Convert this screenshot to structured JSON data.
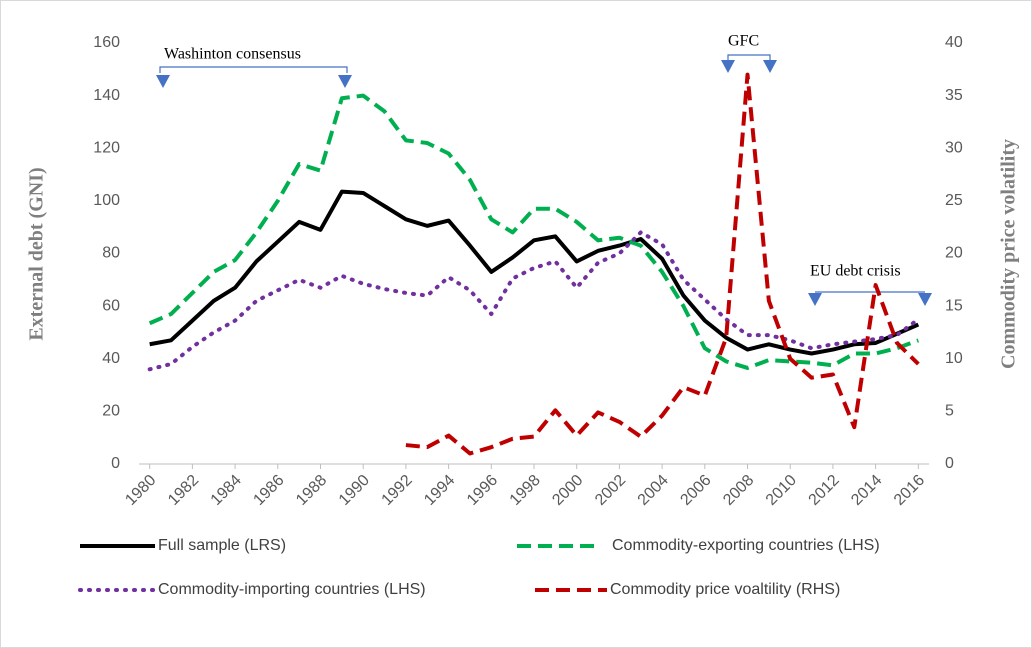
{
  "chart_data": {
    "type": "line",
    "x": [
      1980,
      1981,
      1982,
      1983,
      1984,
      1985,
      1986,
      1987,
      1988,
      1989,
      1990,
      1991,
      1992,
      1993,
      1994,
      1995,
      1996,
      1997,
      1998,
      1999,
      2000,
      2001,
      2002,
      2003,
      2004,
      2005,
      2006,
      2007,
      2008,
      2009,
      2010,
      2011,
      2012,
      2013,
      2014,
      2015,
      2016
    ],
    "xlim": [
      1979.5,
      2016.5
    ],
    "xticks": [
      1980,
      1982,
      1984,
      1986,
      1988,
      1990,
      1992,
      1994,
      1996,
      1998,
      2000,
      2002,
      2004,
      2006,
      2008,
      2010,
      2012,
      2014,
      2016
    ],
    "ylim": [
      0,
      160
    ],
    "yticks": [
      0,
      20,
      40,
      60,
      80,
      100,
      120,
      140,
      160
    ],
    "y2lim": [
      0,
      40
    ],
    "y2ticks": [
      0,
      5,
      10,
      15,
      20,
      25,
      30,
      35,
      40
    ],
    "ylabel": "External debt (GNI)",
    "y2label": "Commodity price volatility",
    "annotations": [
      "Washinton consensus",
      "GFC",
      "EU debt crisis"
    ],
    "series": [
      {
        "name": "Full sample (LRS)",
        "color": "#000000",
        "style": "solid",
        "values": [
          45.5,
          47,
          54.5,
          62,
          67,
          77,
          84.5,
          92,
          89,
          103.5,
          103,
          98,
          93,
          90.5,
          92.5,
          83,
          73,
          78.5,
          85,
          86.5,
          77,
          81,
          83,
          85.5,
          78,
          64,
          54.5,
          48,
          43.5,
          45.5,
          43.5,
          42,
          43.5,
          45.5,
          46,
          49.5,
          53
        ]
      },
      {
        "name": "Commodity-exporting countries (LHS)",
        "color": "#00b050",
        "style": "dashed",
        "values": [
          53.5,
          57,
          65,
          73,
          77.5,
          88,
          100,
          114,
          111.5,
          139,
          140,
          134,
          123,
          122,
          118,
          108,
          93,
          88,
          97,
          97,
          92,
          85,
          86,
          83,
          73,
          60,
          44,
          39,
          36.5,
          39.5,
          39,
          38.5,
          37.5,
          42,
          42,
          44,
          47
        ]
      },
      {
        "name": "Commodity-importing countries (LHS)",
        "color": "#7030a0",
        "style": "dotted",
        "values": [
          36,
          38,
          44.5,
          50,
          54.5,
          62,
          66,
          70,
          67,
          71.5,
          68.5,
          66.5,
          65,
          64,
          71,
          66,
          57,
          70.5,
          74.5,
          77,
          67,
          76.5,
          80,
          88,
          83.5,
          70,
          62.5,
          55,
          49,
          49,
          47,
          44,
          45.5,
          46.5,
          47.5,
          49,
          55
        ]
      },
      {
        "name": "Commodity price voaltility (RHS)",
        "color": "#c00000",
        "style": "dashed",
        "axis": "y2",
        "values": [
          null,
          null,
          null,
          null,
          null,
          null,
          null,
          null,
          null,
          null,
          null,
          null,
          1.8,
          1.6,
          2.7,
          1.0,
          1.6,
          2.4,
          2.6,
          5.1,
          2.7,
          4.9,
          4.0,
          2.6,
          4.6,
          7.3,
          6.5,
          12,
          37,
          15.5,
          10,
          8.2,
          8.5,
          3.5,
          17,
          11.5,
          9.5
        ]
      }
    ]
  }
}
